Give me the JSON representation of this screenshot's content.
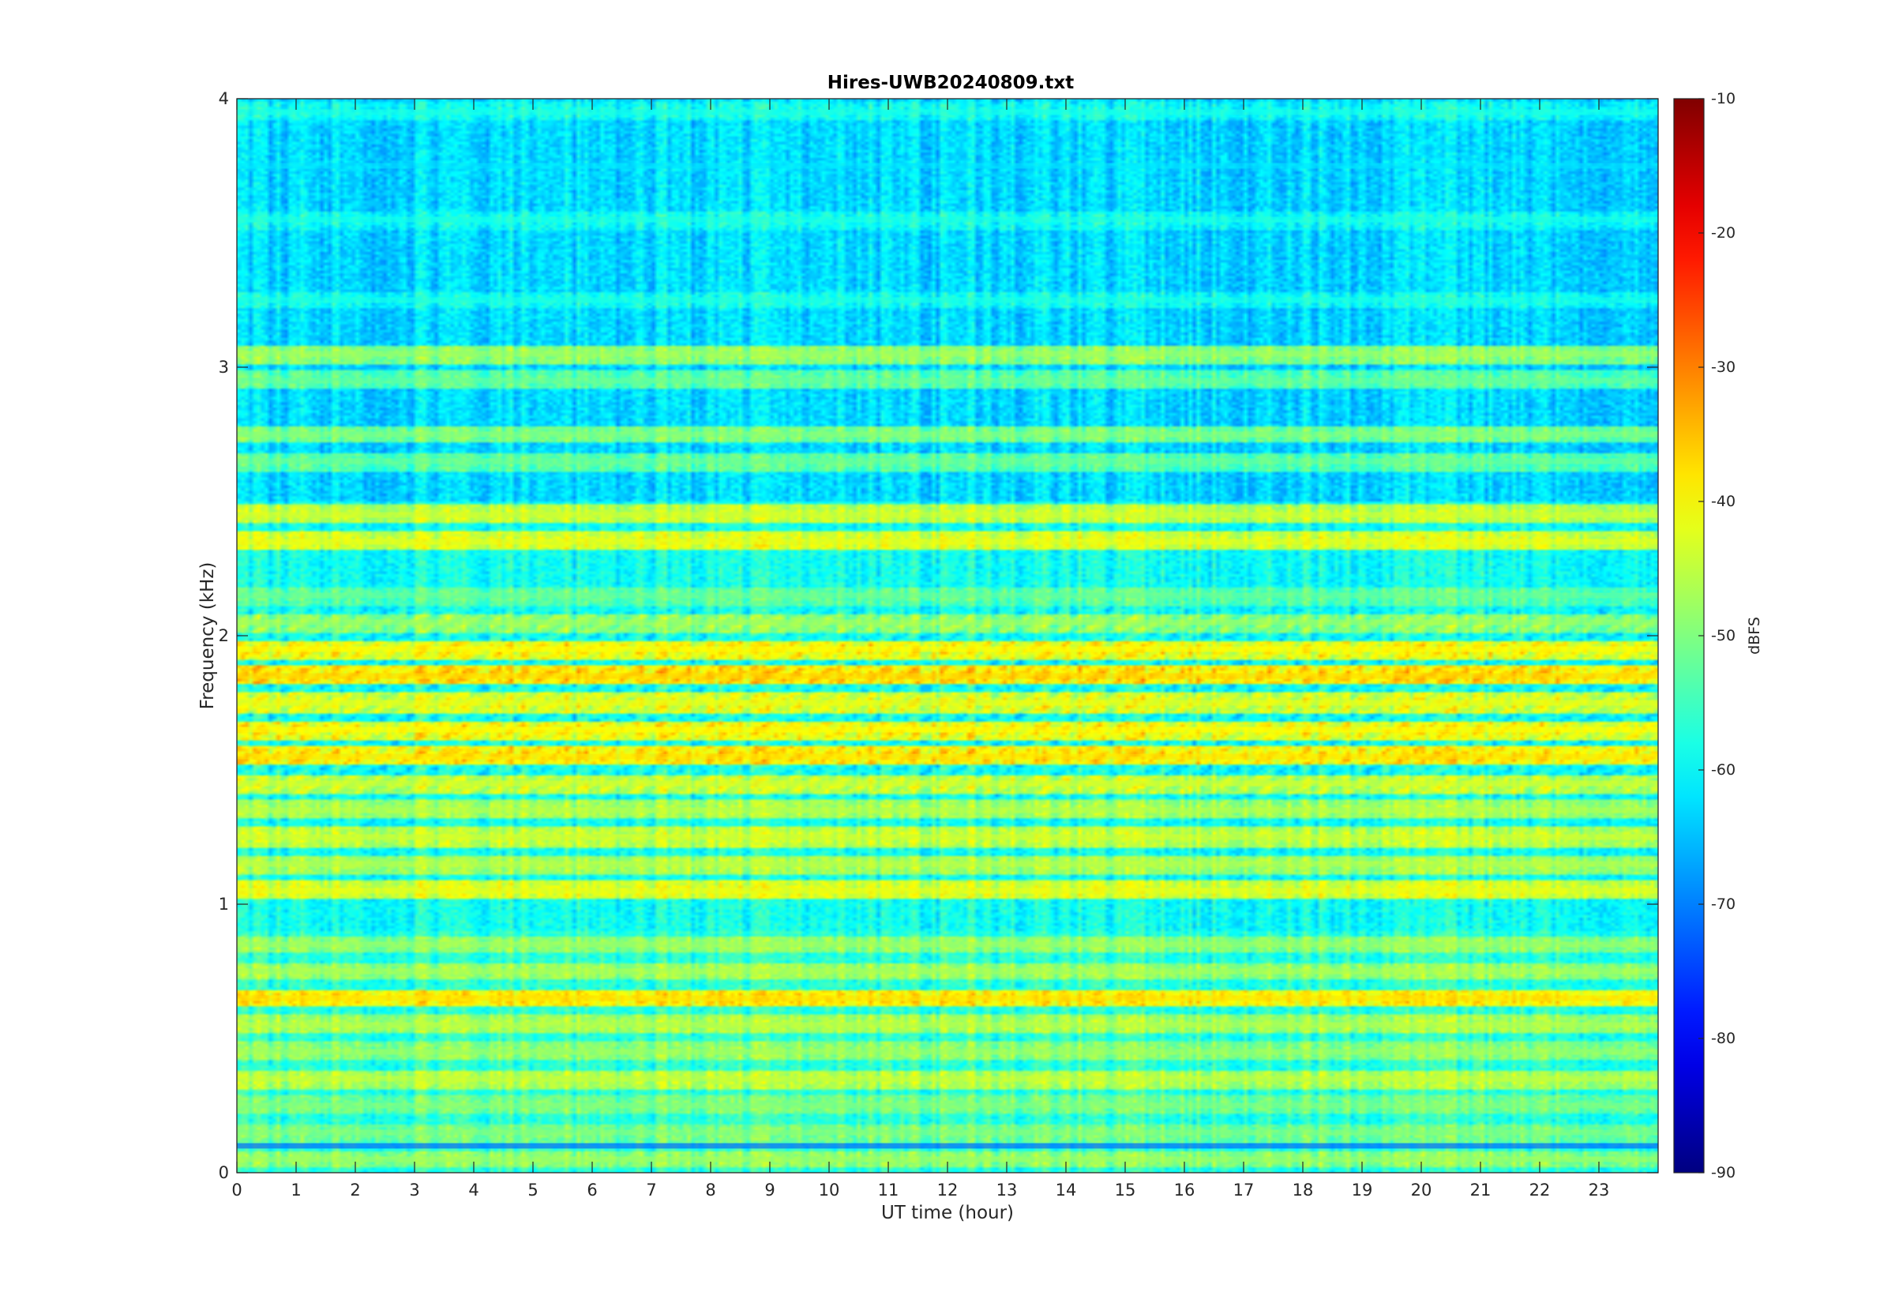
{
  "chart_data": {
    "type": "heatmap",
    "title": "Hires-UWB20240809.txt",
    "xlabel": "UT time (hour)",
    "ylabel": "Frequency (kHz)",
    "xlim": [
      0,
      24
    ],
    "ylim": [
      0,
      4
    ],
    "x_ticks": [
      "0",
      "1",
      "2",
      "3",
      "4",
      "5",
      "6",
      "7",
      "8",
      "9",
      "10",
      "11",
      "12",
      "13",
      "14",
      "15",
      "16",
      "17",
      "18",
      "19",
      "20",
      "21",
      "22",
      "23"
    ],
    "y_ticks": [
      "0",
      "1",
      "2",
      "3",
      "4"
    ],
    "colorbar": {
      "label": "dBFS",
      "range": [
        -90,
        -10
      ],
      "ticks": [
        "-10",
        "-20",
        "-30",
        "-40",
        "-50",
        "-60",
        "-70",
        "-80",
        "-90"
      ],
      "colormap": "jet"
    },
    "frequency_bands_khz": [
      {
        "f": 0.05,
        "level_dbfs": -48
      },
      {
        "f": 0.1,
        "level_dbfs": -75
      },
      {
        "f": 0.15,
        "level_dbfs": -50
      },
      {
        "f": 0.25,
        "level_dbfs": -50
      },
      {
        "f": 0.35,
        "level_dbfs": -45
      },
      {
        "f": 0.45,
        "level_dbfs": -48
      },
      {
        "f": 0.55,
        "level_dbfs": -46
      },
      {
        "f": 0.65,
        "level_dbfs": -38
      },
      {
        "f": 0.75,
        "level_dbfs": -47
      },
      {
        "f": 0.85,
        "level_dbfs": -48
      },
      {
        "f": 1.05,
        "level_dbfs": -42
      },
      {
        "f": 1.15,
        "level_dbfs": -46
      },
      {
        "f": 1.25,
        "level_dbfs": -44
      },
      {
        "f": 1.35,
        "level_dbfs": -46
      },
      {
        "f": 1.45,
        "level_dbfs": -44
      },
      {
        "f": 1.55,
        "level_dbfs": -38
      },
      {
        "f": 1.65,
        "level_dbfs": -40
      },
      {
        "f": 1.75,
        "level_dbfs": -42
      },
      {
        "f": 1.85,
        "level_dbfs": -37
      },
      {
        "f": 1.95,
        "level_dbfs": -40
      },
      {
        "f": 2.05,
        "level_dbfs": -48
      },
      {
        "f": 2.15,
        "level_dbfs": -52
      },
      {
        "f": 2.35,
        "level_dbfs": -42
      },
      {
        "f": 2.45,
        "level_dbfs": -44
      },
      {
        "f": 2.65,
        "level_dbfs": -52
      },
      {
        "f": 2.75,
        "level_dbfs": -50
      },
      {
        "f": 2.95,
        "level_dbfs": -52
      },
      {
        "f": 3.05,
        "level_dbfs": -48
      },
      {
        "f": 3.25,
        "level_dbfs": -58
      },
      {
        "f": 3.55,
        "level_dbfs": -58
      },
      {
        "f": 3.75,
        "level_dbfs": -62
      },
      {
        "f": 3.95,
        "level_dbfs": -58
      }
    ]
  }
}
